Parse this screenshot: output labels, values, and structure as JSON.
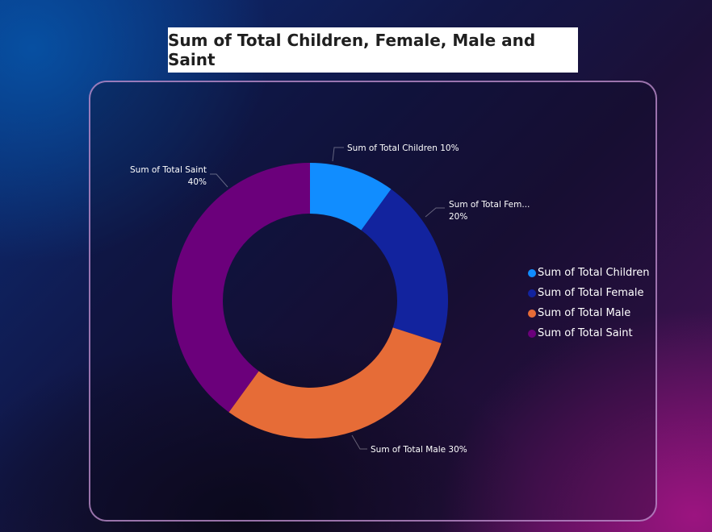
{
  "chart_data": {
    "type": "pie",
    "variant": "donut",
    "title": "Sum of Total Children, Female, Male and Saint",
    "categories": [
      "Sum of Total Children",
      "Sum of Total Female",
      "Sum of Total Male",
      "Sum of Total Saint"
    ],
    "values": [
      10,
      20,
      30,
      40
    ],
    "colors": [
      "#118dff",
      "#12239e",
      "#e66c37",
      "#6b007b"
    ],
    "data_labels": [
      [
        "Sum of Total Children 10%"
      ],
      [
        "Sum of Total Fem...",
        "20%"
      ],
      [
        "Sum of Total Male 30%"
      ],
      [
        "Sum of Total Saint",
        "40%"
      ]
    ],
    "legend_position": "right",
    "legend": [
      "Sum of Total Children",
      "Sum of Total Female",
      "Sum of Total Male",
      "Sum of Total Saint"
    ]
  }
}
